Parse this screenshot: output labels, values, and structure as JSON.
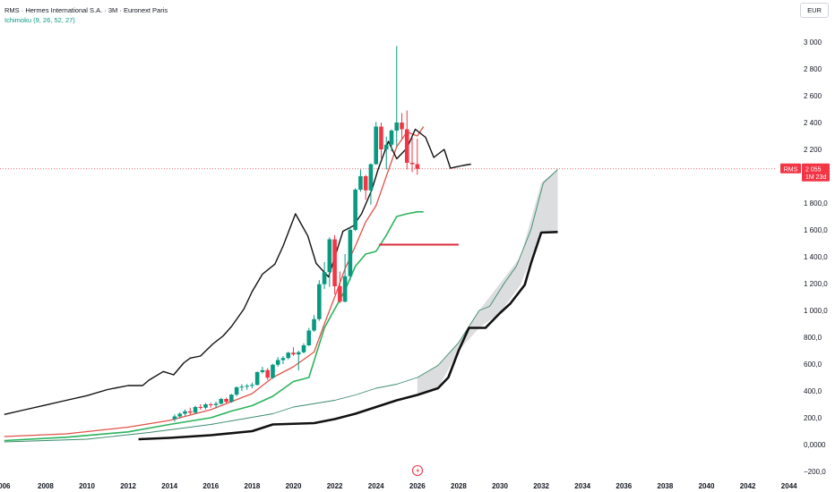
{
  "header": {
    "title": "RMS · Hermes International S.A. · 3M · Euronext Paris",
    "indicator": "Ichimoku (9, 26, 52, 27)",
    "currency": "EUR"
  },
  "price_tag": {
    "symbol": "RMS",
    "price": "2 055",
    "countdown": "1M 23d"
  },
  "colors": {
    "up": "#089981",
    "down": "#f23645",
    "tenkan": "#e0534a",
    "kijun": "#2bb35c",
    "span_b": "#111111",
    "span_a": "#3a8a6a",
    "cloud": "#d7d9dc",
    "lagging": "#111111",
    "flat_line": "#d92b3a"
  },
  "chart_data": {
    "type": "candlestick",
    "symbol": "RMS",
    "timeframe": "3M",
    "current_price": 2055,
    "yaxis": {
      "ticks": [
        3000,
        2800,
        2600,
        2400,
        2200,
        1800,
        1600,
        1400,
        1200,
        1000,
        800,
        600,
        400,
        200,
        0,
        -200
      ],
      "labels": [
        "3 000",
        "2 800",
        "2 600",
        "2 400",
        "2 200",
        "1 800,0",
        "1 600,0",
        "1 400,0",
        "1 200,0",
        "1 000,0",
        "800,0",
        "600,0",
        "400,0",
        "200,0",
        "0,0000",
        "−200,0"
      ],
      "range": [
        -220,
        3080
      ]
    },
    "xaxis": {
      "labels": [
        "006",
        "2008",
        "2010",
        "2012",
        "2014",
        "2016",
        "2018",
        "2020",
        "2022",
        "2024",
        "2026",
        "2028",
        "2030",
        "2032",
        "2034",
        "2036",
        "2038",
        "2040",
        "2042",
        "2044"
      ],
      "positions": [
        2006,
        2008,
        2010,
        2012,
        2014,
        2016,
        2018,
        2020,
        2022,
        2024,
        2026,
        2028,
        2030,
        2032,
        2034,
        2036,
        2038,
        2040,
        2042,
        2044
      ],
      "range": [
        2005.7,
        2045.3
      ]
    },
    "candles": [
      {
        "t": 2014.25,
        "o": 190,
        "h": 225,
        "l": 170,
        "c": 210
      },
      {
        "t": 2014.5,
        "o": 210,
        "h": 240,
        "l": 195,
        "c": 230
      },
      {
        "t": 2014.75,
        "o": 230,
        "h": 262,
        "l": 215,
        "c": 248
      },
      {
        "t": 2015.0,
        "o": 248,
        "h": 275,
        "l": 225,
        "c": 238
      },
      {
        "t": 2015.25,
        "o": 238,
        "h": 290,
        "l": 230,
        "c": 280
      },
      {
        "t": 2015.5,
        "o": 280,
        "h": 300,
        "l": 260,
        "c": 275
      },
      {
        "t": 2015.75,
        "o": 275,
        "h": 310,
        "l": 262,
        "c": 300
      },
      {
        "t": 2016.0,
        "o": 300,
        "h": 312,
        "l": 275,
        "c": 295
      },
      {
        "t": 2016.25,
        "o": 295,
        "h": 320,
        "l": 270,
        "c": 305
      },
      {
        "t": 2016.5,
        "o": 305,
        "h": 348,
        "l": 300,
        "c": 340
      },
      {
        "t": 2016.75,
        "o": 340,
        "h": 350,
        "l": 310,
        "c": 318
      },
      {
        "t": 2017.0,
        "o": 318,
        "h": 378,
        "l": 312,
        "c": 372
      },
      {
        "t": 2017.25,
        "o": 372,
        "h": 432,
        "l": 362,
        "c": 428
      },
      {
        "t": 2017.5,
        "o": 428,
        "h": 450,
        "l": 400,
        "c": 432
      },
      {
        "t": 2017.75,
        "o": 432,
        "h": 452,
        "l": 408,
        "c": 438
      },
      {
        "t": 2018.0,
        "o": 438,
        "h": 462,
        "l": 420,
        "c": 445
      },
      {
        "t": 2018.25,
        "o": 445,
        "h": 545,
        "l": 440,
        "c": 540
      },
      {
        "t": 2018.5,
        "o": 540,
        "h": 580,
        "l": 530,
        "c": 555
      },
      {
        "t": 2018.75,
        "o": 555,
        "h": 570,
        "l": 482,
        "c": 498
      },
      {
        "t": 2019.0,
        "o": 498,
        "h": 602,
        "l": 490,
        "c": 595
      },
      {
        "t": 2019.25,
        "o": 595,
        "h": 652,
        "l": 580,
        "c": 630
      },
      {
        "t": 2019.5,
        "o": 630,
        "h": 660,
        "l": 600,
        "c": 645
      },
      {
        "t": 2019.75,
        "o": 645,
        "h": 692,
        "l": 635,
        "c": 685
      },
      {
        "t": 2020.0,
        "o": 685,
        "h": 725,
        "l": 662,
        "c": 672
      },
      {
        "t": 2020.25,
        "o": 672,
        "h": 700,
        "l": 552,
        "c": 688
      },
      {
        "t": 2020.5,
        "o": 688,
        "h": 755,
        "l": 680,
        "c": 740
      },
      {
        "t": 2020.75,
        "o": 740,
        "h": 870,
        "l": 735,
        "c": 850
      },
      {
        "t": 2021.0,
        "o": 850,
        "h": 965,
        "l": 840,
        "c": 935
      },
      {
        "t": 2021.25,
        "o": 935,
        "h": 1225,
        "l": 922,
        "c": 1195
      },
      {
        "t": 2021.5,
        "o": 1195,
        "h": 1360,
        "l": 1160,
        "c": 1285
      },
      {
        "t": 2021.75,
        "o": 1285,
        "h": 1545,
        "l": 1175,
        "c": 1530
      },
      {
        "t": 2022.0,
        "o": 1530,
        "h": 1562,
        "l": 1120,
        "c": 1180
      },
      {
        "t": 2022.25,
        "o": 1180,
        "h": 1290,
        "l": 1055,
        "c": 1065
      },
      {
        "t": 2022.5,
        "o": 1065,
        "h": 1420,
        "l": 1060,
        "c": 1255
      },
      {
        "t": 2022.75,
        "o": 1255,
        "h": 1620,
        "l": 1225,
        "c": 1600
      },
      {
        "t": 2023.0,
        "o": 1600,
        "h": 1910,
        "l": 1590,
        "c": 1900
      },
      {
        "t": 2023.25,
        "o": 1900,
        "h": 2050,
        "l": 1885,
        "c": 2000
      },
      {
        "t": 2023.5,
        "o": 2000,
        "h": 2010,
        "l": 1825,
        "c": 1895
      },
      {
        "t": 2023.75,
        "o": 1895,
        "h": 2095,
        "l": 1788,
        "c": 2090
      },
      {
        "t": 2024.0,
        "o": 2090,
        "h": 2405,
        "l": 2085,
        "c": 2370
      },
      {
        "t": 2024.25,
        "o": 2370,
        "h": 2400,
        "l": 2135,
        "c": 2200
      },
      {
        "t": 2024.5,
        "o": 2200,
        "h": 2295,
        "l": 2050,
        "c": 2235
      },
      {
        "t": 2024.75,
        "o": 2235,
        "h": 2350,
        "l": 2185,
        "c": 2340
      },
      {
        "t": 2025.0,
        "o": 2340,
        "h": 2970,
        "l": 2225,
        "c": 2400
      },
      {
        "t": 2025.25,
        "o": 2400,
        "h": 2470,
        "l": 2280,
        "c": 2350
      },
      {
        "t": 2025.5,
        "o": 2350,
        "h": 2490,
        "l": 2050,
        "c": 2100
      },
      {
        "t": 2025.75,
        "o": 2100,
        "h": 2290,
        "l": 2030,
        "c": 2090
      },
      {
        "t": 2026.0,
        "o": 2090,
        "h": 2280,
        "l": 2010,
        "c": 2055
      }
    ],
    "series": [
      {
        "name": "Tenkan",
        "x": [
          2006,
          2009,
          2012,
          2014,
          2016,
          2018,
          2019,
          2020,
          2021,
          2021.5,
          2022,
          2022.5,
          2023,
          2023.5,
          2024,
          2024.5,
          2025,
          2025.5,
          2026.0,
          2026.3
        ],
        "y": [
          60,
          80,
          130,
          180,
          260,
          380,
          500,
          580,
          690,
          900,
          1100,
          1310,
          1480,
          1660,
          1780,
          2000,
          2220,
          2330,
          2300,
          2370
        ]
      },
      {
        "name": "Kijun",
        "x": [
          2006,
          2009,
          2012,
          2014,
          2016,
          2017,
          2018,
          2019,
          2020,
          2020.75,
          2021.5,
          2022,
          2022.5,
          2023,
          2023.5,
          2024,
          2024.5,
          2025,
          2025.5,
          2026.0,
          2026.3
        ],
        "y": [
          30,
          55,
          95,
          150,
          200,
          250,
          290,
          360,
          470,
          500,
          870,
          1010,
          1150,
          1330,
          1420,
          1440,
          1560,
          1700,
          1720,
          1735,
          1735
        ]
      },
      {
        "name": "Senkou Span A",
        "x": [
          2006,
          2010,
          2013,
          2016,
          2019,
          2020,
          2022,
          2023,
          2024,
          2025,
          2026,
          2027,
          2028,
          2029,
          2029.5,
          2030.2,
          2030.8,
          2031.5,
          2032.1,
          2032.8
        ],
        "y": [
          20,
          40,
          90,
          150,
          230,
          280,
          330,
          370,
          420,
          450,
          500,
          590,
          760,
          1000,
          1030,
          1200,
          1330,
          1600,
          1950,
          2050
        ]
      },
      {
        "name": "Senkou Span B",
        "x": [
          2012.5,
          2014,
          2016,
          2018,
          2019,
          2021,
          2022,
          2023,
          2024,
          2025,
          2026,
          2027,
          2027.5,
          2028,
          2028.5,
          2029.3,
          2030,
          2030.5,
          2031.2,
          2031.5,
          2032,
          2032.8
        ],
        "y": [
          40,
          50,
          70,
          100,
          150,
          160,
          190,
          230,
          280,
          330,
          370,
          420,
          500,
          700,
          870,
          870,
          980,
          1050,
          1190,
          1350,
          1580,
          1585
        ]
      },
      {
        "name": "Lagging span",
        "x": [
          2006,
          2007,
          2008,
          2009,
          2010,
          2011,
          2012,
          2012.7,
          2013,
          2013.7,
          2014.2,
          2014.7,
          2015.0,
          2015.5,
          2016.1,
          2016.6,
          2017.0,
          2017.6,
          2018.0,
          2018.5,
          2019.1,
          2019.5,
          2020.1,
          2020.7,
          2021.1,
          2021.7,
          2022.4,
          2022.9,
          2023.3,
          2023.8,
          2024.1,
          2024.6,
          2025.0,
          2025.5,
          2025.9,
          2026.4,
          2026.8,
          2027.3,
          2027.6,
          2028.2,
          2028.6
        ],
        "y": [
          225,
          260,
          295,
          330,
          365,
          410,
          440,
          440,
          480,
          545,
          520,
          610,
          645,
          660,
          750,
          810,
          880,
          1010,
          1140,
          1270,
          1345,
          1480,
          1720,
          1555,
          1350,
          1250,
          1590,
          1630,
          1720,
          1900,
          2050,
          2260,
          2130,
          2210,
          2350,
          2290,
          2140,
          2200,
          2060,
          2080,
          2090
        ]
      }
    ],
    "cloud": {
      "x": [
        2026,
        2027,
        2028,
        2029,
        2030,
        2031,
        2032,
        2032.8
      ],
      "top": [
        500,
        590,
        760,
        1000,
        1200,
        1400,
        1950,
        2050
      ],
      "bottom": [
        370,
        420,
        700,
        870,
        980,
        1190,
        1580,
        1585
      ]
    },
    "hline": {
      "x1": 2024.15,
      "x2": 2028.0,
      "y": 1490
    },
    "current_price_line": 2055
  }
}
